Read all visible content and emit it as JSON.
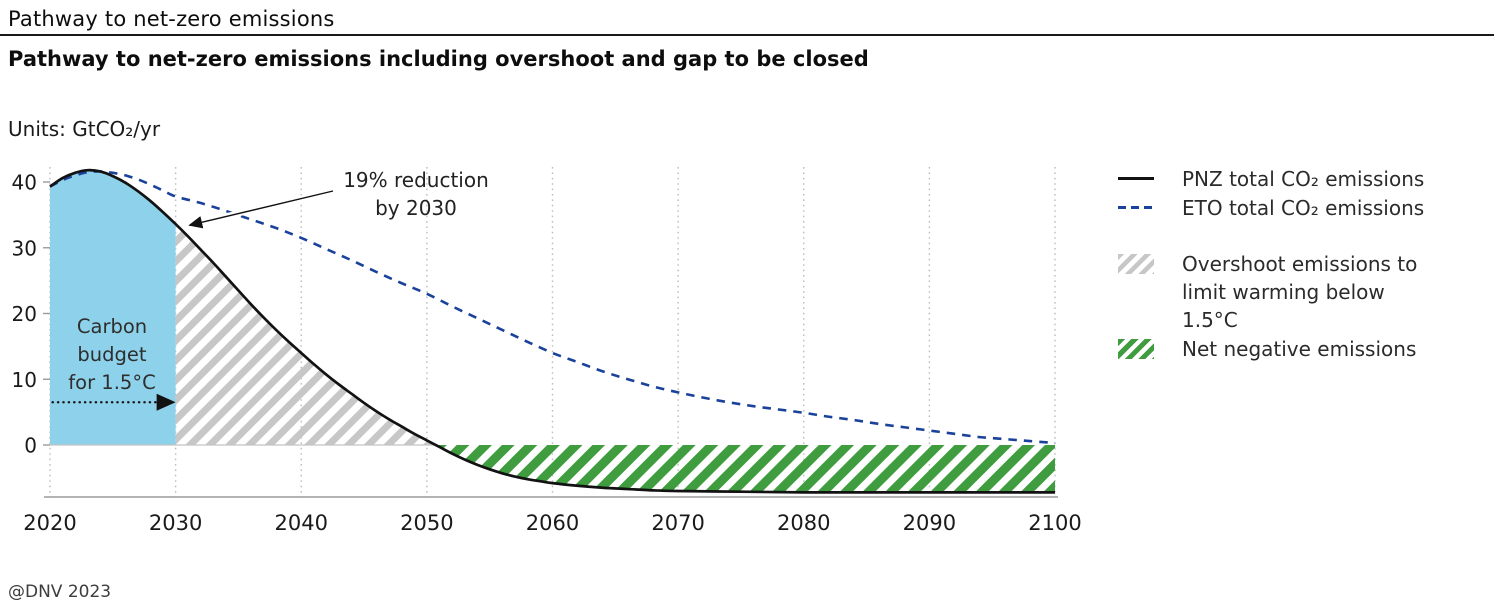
{
  "page": {
    "pretitle": "Pathway to net-zero emissions",
    "title": "Pathway to net-zero emissions including overshoot and gap to be closed",
    "units_label": "Units: GtCO₂/yr",
    "footer": "@DNV 2023"
  },
  "legend": {
    "pnz": "PNZ total CO₂ emissions",
    "eto": "ETO total CO₂ emissions",
    "overshoot": "Overshoot emissions to limit warming below 1.5°C",
    "net_negative": "Net negative emissions"
  },
  "chart_data": {
    "type": "line",
    "title": "Pathway to net-zero emissions including overshoot and gap to be closed",
    "xlabel": "",
    "ylabel": "GtCO₂/yr",
    "xlim": [
      2020,
      2100
    ],
    "ylim": [
      -8,
      42.5
    ],
    "x_ticks": [
      2020,
      2030,
      2040,
      2050,
      2060,
      2070,
      2080,
      2090,
      2100
    ],
    "y_ticks": [
      0,
      10,
      20,
      30,
      40
    ],
    "grid": "vertical-dotted",
    "legend_position": "right",
    "series": [
      {
        "name": "PNZ total CO₂ emissions",
        "style": "solid",
        "color": "#121212",
        "points": [
          [
            2020,
            39.3
          ],
          [
            2021,
            40.6
          ],
          [
            2022,
            41.4
          ],
          [
            2023,
            41.8
          ],
          [
            2024,
            41.6
          ],
          [
            2025,
            40.9
          ],
          [
            2026,
            39.9
          ],
          [
            2027,
            38.6
          ],
          [
            2028,
            37.1
          ],
          [
            2029,
            35.4
          ],
          [
            2030,
            33.6
          ],
          [
            2031,
            31.7
          ],
          [
            2032,
            29.7
          ],
          [
            2033,
            27.7
          ],
          [
            2034,
            25.6
          ],
          [
            2035,
            23.5
          ],
          [
            2036,
            21.4
          ],
          [
            2037,
            19.4
          ],
          [
            2038,
            17.5
          ],
          [
            2039,
            15.7
          ],
          [
            2040,
            14.0
          ],
          [
            2041,
            12.3
          ],
          [
            2042,
            10.7
          ],
          [
            2043,
            9.2
          ],
          [
            2044,
            7.8
          ],
          [
            2045,
            6.4
          ],
          [
            2046,
            5.1
          ],
          [
            2047,
            3.9
          ],
          [
            2048,
            2.8
          ],
          [
            2049,
            1.7
          ],
          [
            2050,
            0.7
          ],
          [
            2051,
            -0.3
          ],
          [
            2052,
            -1.3
          ],
          [
            2053,
            -2.2
          ],
          [
            2054,
            -3.0
          ],
          [
            2055,
            -3.7
          ],
          [
            2056,
            -4.3
          ],
          [
            2057,
            -4.8
          ],
          [
            2058,
            -5.2
          ],
          [
            2059,
            -5.5
          ],
          [
            2060,
            -5.8
          ],
          [
            2062,
            -6.2
          ],
          [
            2064,
            -6.5
          ],
          [
            2066,
            -6.7
          ],
          [
            2068,
            -6.9
          ],
          [
            2070,
            -7.0
          ],
          [
            2075,
            -7.1
          ],
          [
            2080,
            -7.2
          ],
          [
            2085,
            -7.2
          ],
          [
            2090,
            -7.2
          ],
          [
            2095,
            -7.2
          ],
          [
            2100,
            -7.2
          ]
        ]
      },
      {
        "name": "ETO total CO₂ emissions",
        "style": "dashed",
        "color": "#1a429b",
        "points": [
          [
            2020,
            39.3
          ],
          [
            2021,
            40.3
          ],
          [
            2022,
            41.0
          ],
          [
            2023,
            41.5
          ],
          [
            2024,
            41.6
          ],
          [
            2025,
            41.4
          ],
          [
            2026,
            41.0
          ],
          [
            2027,
            40.4
          ],
          [
            2028,
            39.6
          ],
          [
            2029,
            38.7
          ],
          [
            2030,
            37.8
          ],
          [
            2032,
            36.8
          ],
          [
            2034,
            35.6
          ],
          [
            2036,
            34.3
          ],
          [
            2038,
            33.0
          ],
          [
            2040,
            31.5
          ],
          [
            2042,
            29.8
          ],
          [
            2044,
            28.1
          ],
          [
            2046,
            26.3
          ],
          [
            2048,
            24.6
          ],
          [
            2050,
            23.0
          ],
          [
            2052,
            21.1
          ],
          [
            2054,
            19.3
          ],
          [
            2056,
            17.5
          ],
          [
            2058,
            15.7
          ],
          [
            2060,
            14.0
          ],
          [
            2062,
            12.6
          ],
          [
            2064,
            11.2
          ],
          [
            2066,
            10.0
          ],
          [
            2068,
            8.9
          ],
          [
            2070,
            8.0
          ],
          [
            2072,
            7.2
          ],
          [
            2074,
            6.5
          ],
          [
            2076,
            5.9
          ],
          [
            2078,
            5.4
          ],
          [
            2080,
            4.9
          ],
          [
            2082,
            4.3
          ],
          [
            2084,
            3.8
          ],
          [
            2086,
            3.2
          ],
          [
            2088,
            2.7
          ],
          [
            2090,
            2.2
          ],
          [
            2092,
            1.7
          ],
          [
            2094,
            1.2
          ],
          [
            2096,
            0.9
          ],
          [
            2098,
            0.6
          ],
          [
            2100,
            0.3
          ]
        ]
      }
    ],
    "regions": [
      {
        "name": "Carbon budget for 1.5°C",
        "type": "solid-fill",
        "color": "#8dd2ea",
        "from_year": 2020,
        "to_year": 2030,
        "between": "pnz-curve-and-zero"
      },
      {
        "name": "Overshoot emissions to limit warming below 1.5°C",
        "type": "hatch",
        "color": "#c7c7c7",
        "from_year": 2030,
        "to_year": "pnz-zero-crossing",
        "between": "pnz-curve-and-zero"
      },
      {
        "name": "Net negative emissions",
        "type": "hatch",
        "color": "#3f9c3f",
        "from_year": "pnz-zero-crossing",
        "to_year": 2100,
        "between": "zero-and-pnz-curve"
      }
    ],
    "annotations": {
      "reduction": {
        "lines": [
          "19% reduction",
          "by 2030"
        ],
        "arrow_to_year": 2030.4,
        "arrow_to_value": 33.2
      },
      "carbon_budget": {
        "lines": [
          "Carbon",
          "budget",
          "for 1.5°C"
        ],
        "arrow_value": 6.5,
        "arrow_from_year": 2020.2,
        "arrow_to_year": 2030
      }
    },
    "colors": {
      "grid": "#bdbdbd",
      "axis": "#9b9b9b",
      "zero_line": "#c4c4c4",
      "tick_text": "#1a1a1a",
      "annotation_text": "#222222"
    }
  }
}
